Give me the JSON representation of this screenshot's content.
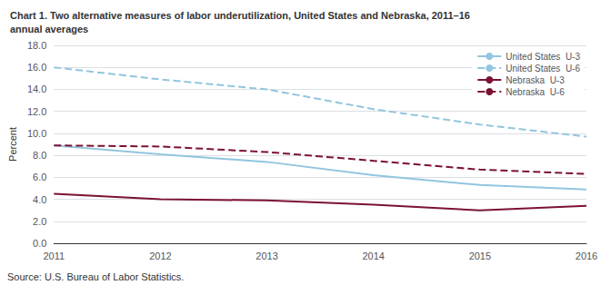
{
  "chart_data": {
    "type": "line",
    "title": "Chart 1. Two alternative measures of labor underutilization, United States and Nebraska, 2011–16\nannual averages",
    "ylabel": "Percent",
    "annotations": [
      "Source: U.S. Bureau of Labor Statistics."
    ],
    "x": [
      2011,
      2012,
      2013,
      2014,
      2015,
      2016
    ],
    "xlim": [
      2011,
      2016
    ],
    "xticks": [
      2011,
      2012,
      2013,
      2014,
      2015,
      2016
    ],
    "ylim": [
      0.0,
      18.0
    ],
    "yticks": [
      {
        "value": 0.0,
        "label": "0.0"
      },
      {
        "value": 2.0,
        "label": "2.0"
      },
      {
        "value": 4.0,
        "label": "4.0"
      },
      {
        "value": 6.0,
        "label": "6.0"
      },
      {
        "value": 8.0,
        "label": "8.0"
      },
      {
        "value": 10.0,
        "label": "10.0"
      },
      {
        "value": 12.0,
        "label": "12.0"
      },
      {
        "value": 14.0,
        "label": "14.0"
      },
      {
        "value": 16.0,
        "label": "16.0"
      },
      {
        "value": 18.0,
        "label": "18.0"
      }
    ],
    "grid": true,
    "legend": "upper right",
    "series": [
      {
        "name": "United States  U-3",
        "color": "#92c5de",
        "line_style": "solid",
        "values": [
          8.9,
          8.1,
          7.4,
          6.2,
          5.3,
          4.9
        ]
      },
      {
        "name": "United States  U-6",
        "color": "#92c5de",
        "line_style": "dashed",
        "values": [
          16.0,
          14.9,
          14.0,
          12.2,
          10.8,
          9.7
        ]
      },
      {
        "name": "Nebraska  U-3",
        "color": "#7b1232",
        "line_style": "solid",
        "values": [
          4.5,
          4.0,
          3.9,
          3.5,
          3.0,
          3.4
        ]
      },
      {
        "name": "Nebraska  U-6",
        "color": "#7b1232",
        "line_style": "dashed",
        "values": [
          8.9,
          8.8,
          8.3,
          7.5,
          6.7,
          6.3
        ]
      }
    ]
  }
}
